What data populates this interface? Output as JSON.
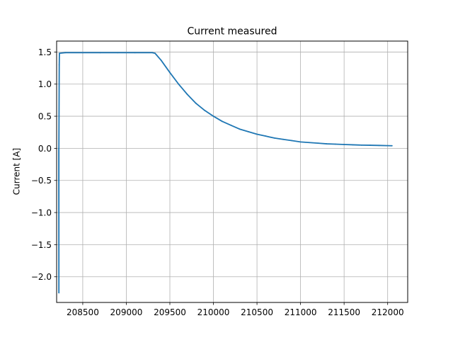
{
  "chart_data": {
    "type": "line",
    "title": "Current measured",
    "xlabel": "",
    "ylabel": "Current [A]",
    "xlim": [
      208200,
      212230
    ],
    "ylim": [
      -2.4,
      1.67
    ],
    "xticks": [
      208500,
      209000,
      209500,
      210000,
      210500,
      211000,
      211500,
      212000
    ],
    "yticks": [
      -2.0,
      -1.5,
      -1.0,
      -0.5,
      0.0,
      0.5,
      1.0,
      1.5
    ],
    "xtick_labels": [
      "208500",
      "209000",
      "209500",
      "210000",
      "210500",
      "211000",
      "211500",
      "212000"
    ],
    "ytick_labels": [
      "−2.0",
      "−1.5",
      "−1.0",
      "−0.5",
      "0.0",
      "0.5",
      "1.0",
      "1.5"
    ],
    "grid": true,
    "series": [
      {
        "color": "#1f77b4",
        "x": [
          208225,
          208225,
          208226,
          208226,
          208230,
          208232,
          208300,
          208500,
          208700,
          208900,
          209100,
          209300,
          209330,
          209400,
          209500,
          209600,
          209700,
          209800,
          209900,
          210000,
          210100,
          210200,
          210300,
          210400,
          210500,
          210600,
          210700,
          210800,
          210900,
          211000,
          211100,
          211200,
          211300,
          211400,
          211500,
          211600,
          211700,
          211800,
          211900,
          212000,
          212050
        ],
        "y": [
          0.0,
          -0.5,
          -2.25,
          0.0,
          1.3,
          1.48,
          1.49,
          1.49,
          1.49,
          1.49,
          1.49,
          1.49,
          1.48,
          1.37,
          1.18,
          1.0,
          0.84,
          0.7,
          0.59,
          0.5,
          0.42,
          0.36,
          0.3,
          0.26,
          0.22,
          0.19,
          0.16,
          0.14,
          0.12,
          0.1,
          0.09,
          0.08,
          0.07,
          0.065,
          0.06,
          0.055,
          0.05,
          0.048,
          0.045,
          0.042,
          0.04
        ]
      }
    ]
  }
}
